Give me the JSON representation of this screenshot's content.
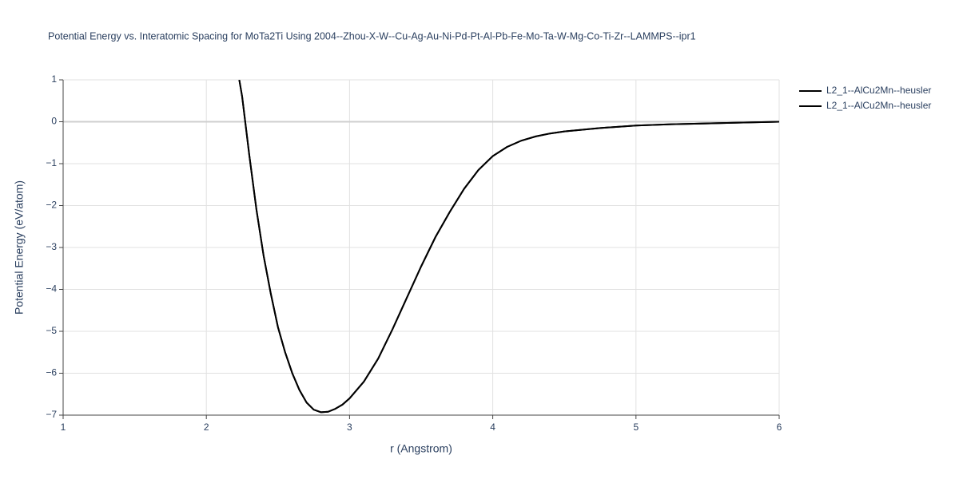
{
  "chart_data": {
    "type": "line",
    "title": "Potential Energy vs. Interatomic Spacing for MoTa2Ti Using 2004--Zhou-X-W--Cu-Ag-Au-Ni-Pd-Pt-Al-Pb-Fe-Mo-Ta-W-Mg-Co-Ti-Zr--LAMMPS--ipr1",
    "x_label": "r (Angstrom)",
    "y_label": "Potential Energy (eV/atom)",
    "x": [
      2.23,
      2.25,
      2.3,
      2.35,
      2.4,
      2.45,
      2.5,
      2.55,
      2.6,
      2.65,
      2.7,
      2.75,
      2.8,
      2.85,
      2.9,
      2.95,
      3.0,
      3.1,
      3.2,
      3.3,
      3.4,
      3.5,
      3.6,
      3.7,
      3.8,
      3.9,
      4.0,
      4.1,
      4.2,
      4.3,
      4.4,
      4.5,
      4.75,
      5.0,
      5.25,
      5.5,
      5.75,
      6.0
    ],
    "series": [
      {
        "name": "L2_1--AlCu2Mn--heusler",
        "color": "#000000",
        "values": [
          1.0,
          0.6,
          -0.8,
          -2.1,
          -3.2,
          -4.1,
          -4.9,
          -5.5,
          -6.0,
          -6.4,
          -6.7,
          -6.87,
          -6.93,
          -6.92,
          -6.85,
          -6.75,
          -6.6,
          -6.2,
          -5.65,
          -4.95,
          -4.2,
          -3.45,
          -2.75,
          -2.15,
          -1.6,
          -1.15,
          -0.82,
          -0.6,
          -0.45,
          -0.35,
          -0.28,
          -0.23,
          -0.15,
          -0.09,
          -0.06,
          -0.04,
          -0.02,
          0.0
        ]
      },
      {
        "name": "L2_1--AlCu2Mn--heusler",
        "color": "#000000",
        "values": [
          1.0,
          0.6,
          -0.8,
          -2.1,
          -3.2,
          -4.1,
          -4.9,
          -5.5,
          -6.0,
          -6.4,
          -6.7,
          -6.87,
          -6.93,
          -6.92,
          -6.85,
          -6.75,
          -6.6,
          -6.2,
          -5.65,
          -4.95,
          -4.2,
          -3.45,
          -2.75,
          -2.15,
          -1.6,
          -1.15,
          -0.82,
          -0.6,
          -0.45,
          -0.35,
          -0.28,
          -0.23,
          -0.15,
          -0.09,
          -0.06,
          -0.04,
          -0.02,
          0.0
        ]
      }
    ],
    "xlim": [
      1,
      6
    ],
    "xticks": [
      1,
      2,
      3,
      4,
      5,
      6
    ],
    "ylim": [
      -7,
      1
    ],
    "yticks": [
      {
        "value": -7,
        "label": "−7"
      },
      {
        "value": -6,
        "label": "−6"
      },
      {
        "value": -5,
        "label": "−5"
      },
      {
        "value": -4,
        "label": "−4"
      },
      {
        "value": -3,
        "label": "−3"
      },
      {
        "value": -2,
        "label": "−2"
      },
      {
        "value": -1,
        "label": "−1"
      },
      0,
      1
    ],
    "grid": true,
    "legend": "top-right"
  }
}
